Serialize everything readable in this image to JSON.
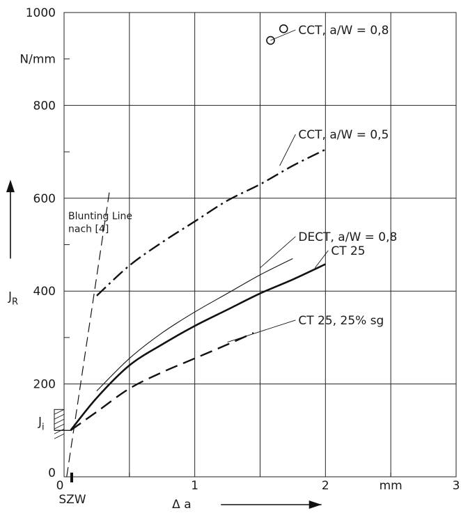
{
  "chart_data": {
    "type": "line",
    "title": "",
    "xlabel": "Δ a",
    "x_unit": "mm",
    "ylabel": "J_R",
    "y_unit": "N/mm",
    "xlim": [
      0,
      3
    ],
    "ylim": [
      0,
      1000
    ],
    "x_ticks": [
      "0",
      "1",
      "2",
      "3"
    ],
    "y_ticks": [
      "0",
      "200",
      "400",
      "600",
      "800",
      "1000"
    ],
    "grid": true,
    "x_extra_label": "SZW",
    "y_extra_label": "J_i",
    "series": [
      {
        "name": "CCT, a/W = 0,8",
        "style": "points",
        "points": [
          [
            1.58,
            940
          ],
          [
            1.68,
            965
          ]
        ]
      },
      {
        "name": "CCT, a/W = 0,5",
        "style": "dash-dot",
        "points": [
          [
            0.25,
            390
          ],
          [
            0.5,
            455
          ],
          [
            0.75,
            505
          ],
          [
            1.0,
            550
          ],
          [
            1.25,
            595
          ],
          [
            1.5,
            630
          ],
          [
            1.75,
            670
          ],
          [
            2.0,
            705
          ]
        ]
      },
      {
        "name": "DECT, a/W = 0,8",
        "style": "thin",
        "points": [
          [
            0.25,
            185
          ],
          [
            0.5,
            255
          ],
          [
            0.75,
            310
          ],
          [
            1.0,
            355
          ],
          [
            1.25,
            395
          ],
          [
            1.5,
            435
          ],
          [
            1.75,
            470
          ]
        ]
      },
      {
        "name": "CT 25",
        "style": "thick",
        "points": [
          [
            0.05,
            100
          ],
          [
            0.25,
            170
          ],
          [
            0.5,
            240
          ],
          [
            0.75,
            285
          ],
          [
            1.0,
            325
          ],
          [
            1.25,
            360
          ],
          [
            1.5,
            395
          ],
          [
            1.75,
            425
          ],
          [
            2.0,
            458
          ]
        ]
      },
      {
        "name": "CT 25,  25% sg",
        "style": "dashed",
        "points": [
          [
            0.05,
            100
          ],
          [
            0.25,
            140
          ],
          [
            0.5,
            190
          ],
          [
            0.75,
            225
          ],
          [
            1.0,
            255
          ],
          [
            1.25,
            285
          ],
          [
            1.45,
            310
          ]
        ]
      }
    ],
    "blunting_line": {
      "label_1": "Blunting Line",
      "label_2": "nach [4]",
      "points": [
        [
          0.02,
          0
        ],
        [
          0.35,
          620
        ]
      ]
    }
  }
}
